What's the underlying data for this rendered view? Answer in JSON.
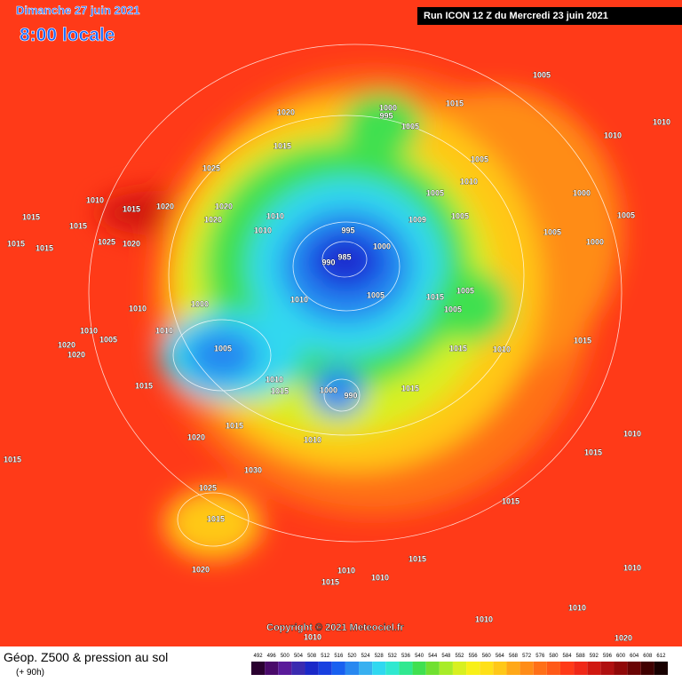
{
  "header": {
    "date": "Dimanche 27 juin 2021",
    "time": "8:00 locale",
    "run": "Run ICON 12 Z du Mercredi 23 juin 2021"
  },
  "copyright": "Copyright © 2021 Meteociel.fr",
  "footer": {
    "title": "Géop. Z500 & pression au sol",
    "lead": "(+ 90h)"
  },
  "isobar_labels": [
    1005,
    1000,
    995,
    1005,
    1015,
    1020,
    1015,
    1025,
    1010,
    1015,
    1020,
    1020,
    1020,
    1015,
    1015,
    1025,
    1020,
    1015,
    1015,
    1010,
    1010,
    995,
    1000,
    985,
    990,
    1010,
    1005,
    1015,
    1005,
    1005,
    1000,
    1010,
    1010,
    1010,
    1005,
    1020,
    1020,
    1005,
    1010,
    1015,
    1000,
    990,
    1015,
    1015,
    1010,
    1015,
    1015,
    1010,
    1020,
    1030,
    1025,
    1015,
    1020,
    1015,
    1010,
    1015,
    1010,
    1010,
    1010,
    1005,
    1010,
    1005,
    1009,
    1005,
    1005,
    1000,
    1000,
    1005,
    1010,
    1010,
    1015,
    1010,
    1015,
    1010,
    1010,
    1020,
    1015,
    1015
  ],
  "legend": {
    "values": [
      492,
      496,
      500,
      504,
      508,
      512,
      516,
      520,
      524,
      528,
      532,
      536,
      540,
      544,
      548,
      552,
      556,
      560,
      564,
      568,
      572,
      576,
      580,
      584,
      588,
      592,
      596,
      600,
      604,
      608,
      612
    ],
    "colors": [
      "#2a0030",
      "#4a0a6a",
      "#5a1a9a",
      "#3a2ab0",
      "#1a28c8",
      "#1840e0",
      "#1860f0",
      "#2888f0",
      "#38b0f0",
      "#30d8f0",
      "#30e8d0",
      "#30e890",
      "#40e050",
      "#70e030",
      "#a8ec28",
      "#d8f020",
      "#f8f018",
      "#ffe018",
      "#ffc818",
      "#ffa818",
      "#ff8c18",
      "#ff7018",
      "#ff5a18",
      "#ff3a18",
      "#f02818",
      "#d01810",
      "#b01010",
      "#900808",
      "#6a0404",
      "#400000",
      "#180000"
    ]
  }
}
